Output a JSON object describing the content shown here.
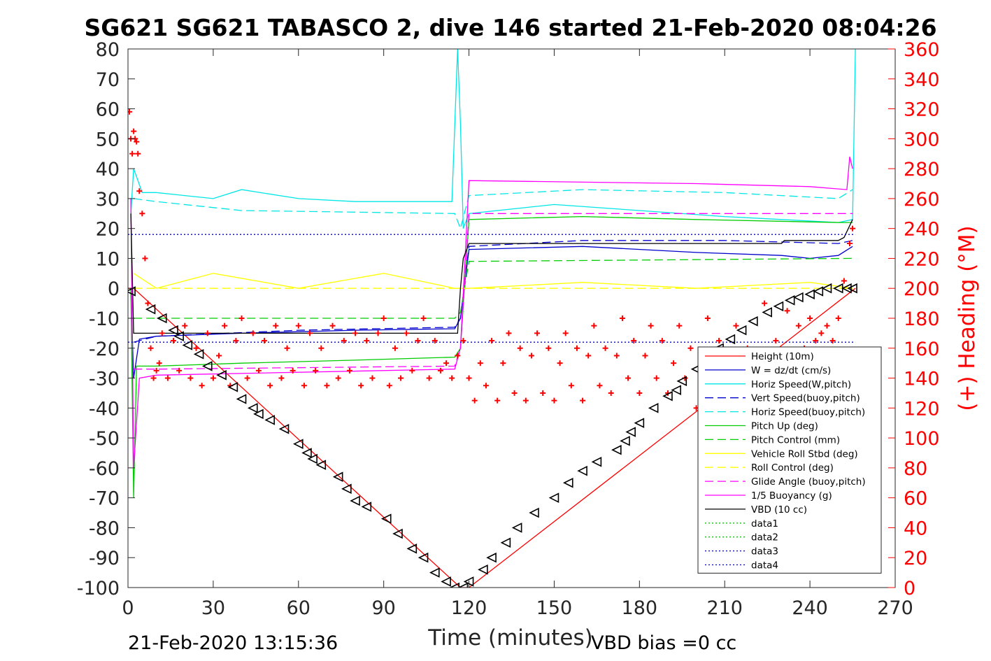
{
  "chart_data": {
    "type": "line",
    "title": "SG621 SG621 TABASCO 2, dive 146 started 21-Feb-2020 08:04:26",
    "xlabel": "Time (minutes)",
    "ylabel_right": "(+) Heading (°M)",
    "xlim": [
      0,
      270
    ],
    "ylim": [
      -100,
      80
    ],
    "ylim_right": [
      0,
      360
    ],
    "x_ticks": [
      "0",
      "30",
      "60",
      "90",
      "120",
      "150",
      "180",
      "210",
      "240",
      "270"
    ],
    "y_ticks": [
      "80",
      "70",
      "60",
      "50",
      "40",
      "30",
      "20",
      "10",
      "0",
      "-10",
      "-20",
      "-30",
      "-40",
      "-50",
      "-60",
      "-70",
      "-80",
      "-90",
      "-100"
    ],
    "y_right_ticks": [
      "360",
      "340",
      "320",
      "300",
      "280",
      "260",
      "240",
      "220",
      "200",
      "180",
      "160",
      "140",
      "120",
      "100",
      "80",
      "60",
      "40",
      "20",
      "0"
    ],
    "grid": false,
    "legend_position": "lower-right",
    "footer_left": "21-Feb-2020 13:15:36",
    "footer_right": "VBD bias =0 cc",
    "series": [
      {
        "name": "Height (10m)",
        "color": "#ff0000",
        "style": "solid",
        "x": [
          0,
          2,
          117,
          120,
          256
        ],
        "y": [
          0,
          0,
          -100,
          -100,
          0
        ]
      },
      {
        "name": "W = dz/dt (cm/s)",
        "color": "#0000cc",
        "style": "solid",
        "x": [
          1,
          2,
          4,
          10,
          40,
          80,
          115,
          117,
          120,
          160,
          200,
          230,
          240,
          250,
          255
        ],
        "y": [
          0,
          -30,
          -17,
          -16,
          -15,
          -14,
          -13.5,
          -10,
          13,
          14,
          12,
          11,
          10,
          11,
          14
        ]
      },
      {
        "name": "Horiz Speed(W,pitch)",
        "color": "#00e6e6",
        "style": "solid",
        "x": [
          1,
          2,
          5,
          10,
          20,
          30,
          40,
          60,
          80,
          100,
          114,
          116,
          117,
          118,
          120,
          150,
          180,
          210,
          230,
          250,
          255,
          256
        ],
        "y": [
          25,
          40,
          32,
          32,
          31,
          30,
          33,
          30,
          29,
          29,
          29,
          80,
          55,
          20,
          25,
          28,
          26,
          24,
          23,
          22,
          23,
          80
        ]
      },
      {
        "name": "Vert Speed(buoy,pitch)",
        "color": "#0000cc",
        "style": "dashed",
        "x": [
          2,
          10,
          60,
          115,
          117,
          120,
          160,
          210,
          250,
          255
        ],
        "y": [
          -18,
          -16,
          -14,
          -13,
          -10,
          14,
          16,
          16,
          15,
          16
        ]
      },
      {
        "name": "Horiz Speed(buoy,pitch)",
        "color": "#00e6e6",
        "style": "dashed",
        "x": [
          2,
          10,
          40,
          115,
          117,
          120,
          160,
          210,
          250,
          255
        ],
        "y": [
          30,
          29,
          26,
          25,
          20,
          31,
          33,
          32,
          30,
          33
        ]
      },
      {
        "name": "Pitch Up (deg)",
        "color": "#00cc00",
        "style": "solid",
        "x": [
          1,
          2,
          3,
          5,
          10,
          40,
          80,
          115,
          117,
          120,
          160,
          200,
          250,
          255
        ],
        "y": [
          0,
          -70,
          -26,
          -26,
          -26,
          -25,
          -24,
          -23,
          -20,
          23,
          24,
          23,
          22,
          22
        ]
      },
      {
        "name": "Pitch Control (mm)",
        "color": "#00cc00",
        "style": "dashed",
        "x": [
          2,
          10,
          115,
          117,
          120,
          255
        ],
        "y": [
          -10,
          -10,
          -10,
          -8,
          9,
          10
        ]
      },
      {
        "name": "Vehicle Roll Stbd (deg)",
        "color": "#ffff00",
        "style": "solid",
        "x": [
          2,
          10,
          30,
          60,
          90,
          115,
          117,
          120,
          160,
          200,
          240,
          255
        ],
        "y": [
          5,
          0,
          5,
          0,
          5,
          0,
          0,
          0,
          2,
          0,
          2,
          0
        ]
      },
      {
        "name": "Roll Control (deg)",
        "color": "#ffff00",
        "style": "dashed",
        "x": [
          2,
          115,
          117,
          255
        ],
        "y": [
          0,
          0,
          0,
          0
        ]
      },
      {
        "name": "Glide Angle (buoy,pitch)",
        "color": "#ff00ff",
        "style": "dashed",
        "x": [
          2,
          10,
          115,
          117,
          120,
          200,
          255
        ],
        "y": [
          -27,
          -27,
          -26,
          -20,
          25,
          25,
          25
        ]
      },
      {
        "name": "1/5 Buoyancy (g)",
        "color": "#ff00ff",
        "style": "solid",
        "x": [
          1,
          2,
          4,
          10,
          115,
          117,
          120,
          200,
          240,
          253,
          254,
          255
        ],
        "y": [
          30,
          -60,
          -30,
          -29,
          -27,
          -20,
          36,
          35,
          34,
          33,
          44,
          40
        ]
      },
      {
        "name": "VBD (10 cc)",
        "color": "#000000",
        "style": "solid",
        "x": [
          1,
          2,
          115,
          116,
          117,
          118,
          120,
          230,
          231,
          250,
          252,
          255
        ],
        "y": [
          25,
          -15,
          -15,
          -15,
          0,
          10,
          15,
          15,
          16,
          16,
          17,
          23
        ]
      },
      {
        "name": "data1",
        "color": "#00cc00",
        "style": "dotted",
        "x": [],
        "y": []
      },
      {
        "name": "data2",
        "color": "#00cc00",
        "style": "dotted",
        "x": [],
        "y": []
      },
      {
        "name": "data3",
        "color": "#0000cc",
        "style": "dotted",
        "x": [
          0,
          256
        ],
        "y": [
          18,
          18
        ]
      },
      {
        "name": "data4",
        "color": "#0000cc",
        "style": "dotted",
        "x": [
          0,
          256
        ],
        "y": [
          -18,
          -18
        ]
      }
    ],
    "vbd_markers": {
      "color": "#000000",
      "x": [
        1,
        8,
        12,
        16,
        18,
        21,
        25,
        28,
        33,
        37,
        40,
        44,
        46,
        50,
        55,
        60,
        63,
        65,
        68,
        74,
        77,
        80,
        84,
        91,
        95,
        100,
        104,
        108,
        112,
        115,
        118,
        120,
        125,
        128,
        133,
        137,
        143,
        150,
        155,
        160,
        165,
        172,
        175,
        177,
        180,
        185,
        190,
        193,
        195,
        200,
        205,
        208,
        212,
        216,
        220,
        225,
        229,
        233,
        236,
        240,
        243,
        246,
        250,
        253,
        255
      ],
      "y": [
        -1,
        -7,
        -10,
        -14,
        -16,
        -19,
        -22,
        -26,
        -29,
        -33,
        -37,
        -40,
        -42,
        -44,
        -47,
        -52,
        -55,
        -57,
        -59,
        -63,
        -67,
        -71,
        -73,
        -77,
        -82,
        -87,
        -90,
        -95,
        -98,
        -100,
        -100,
        -98,
        -94,
        -90,
        -85,
        -80,
        -75,
        -70,
        -65,
        -61,
        -58,
        -54,
        -51,
        -48,
        -45,
        -40,
        -36,
        -34,
        -31,
        -27,
        -23,
        -20,
        -17,
        -14,
        -11,
        -8,
        -6,
        -4,
        -3,
        -2,
        -1,
        0,
        0,
        0,
        0
      ]
    },
    "heading_series": {
      "name": "Heading",
      "color": "#ff0000",
      "marker": "+",
      "axis": "right",
      "x": [
        0.5,
        1,
        1.5,
        2,
        2.5,
        3,
        3.5,
        4,
        5,
        6,
        7,
        8,
        9,
        10,
        11,
        12,
        14,
        16,
        18,
        20,
        22,
        24,
        26,
        28,
        30,
        32,
        34,
        36,
        38,
        40,
        42,
        44,
        46,
        48,
        50,
        52,
        54,
        56,
        58,
        60,
        62,
        64,
        66,
        68,
        70,
        72,
        74,
        76,
        78,
        80,
        82,
        84,
        86,
        88,
        90,
        92,
        94,
        96,
        98,
        100,
        102,
        104,
        106,
        108,
        110,
        112,
        114,
        116,
        118,
        120,
        122,
        124,
        126,
        128,
        130,
        132,
        134,
        136,
        138,
        140,
        142,
        144,
        146,
        148,
        150,
        152,
        154,
        156,
        158,
        160,
        162,
        164,
        166,
        168,
        170,
        172,
        174,
        176,
        178,
        180,
        182,
        184,
        186,
        188,
        190,
        192,
        194,
        196,
        198,
        200,
        202,
        204,
        206,
        208,
        210,
        212,
        214,
        216,
        218,
        220,
        222,
        224,
        226,
        228,
        230,
        232,
        234,
        236,
        238,
        240,
        242,
        244,
        246,
        248,
        250,
        252,
        254,
        255
      ],
      "y": [
        318,
        300,
        290,
        305,
        300,
        298,
        290,
        265,
        250,
        220,
        190,
        160,
        140,
        145,
        150,
        170,
        140,
        165,
        145,
        175,
        140,
        160,
        135,
        170,
        140,
        155,
        175,
        135,
        165,
        180,
        140,
        170,
        145,
        165,
        135,
        175,
        140,
        160,
        145,
        175,
        135,
        170,
        145,
        160,
        135,
        175,
        140,
        165,
        145,
        170,
        135,
        165,
        140,
        170,
        180,
        135,
        160,
        140,
        170,
        145,
        165,
        180,
        140,
        165,
        145,
        150,
        140,
        155,
        165,
        140,
        125,
        150,
        135,
        165,
        125,
        150,
        170,
        130,
        160,
        125,
        155,
        170,
        130,
        160,
        125,
        150,
        170,
        135,
        160,
        125,
        155,
        175,
        135,
        160,
        130,
        155,
        180,
        140,
        165,
        130,
        155,
        175,
        140,
        165,
        130,
        150,
        175,
        140,
        160,
        120,
        150,
        180,
        130,
        165,
        120,
        150,
        175,
        135,
        160,
        130,
        155,
        190,
        120,
        165,
        150,
        185,
        155,
        175,
        160,
        180,
        165,
        170,
        175,
        165,
        180,
        205,
        230,
        240
      ]
    }
  }
}
